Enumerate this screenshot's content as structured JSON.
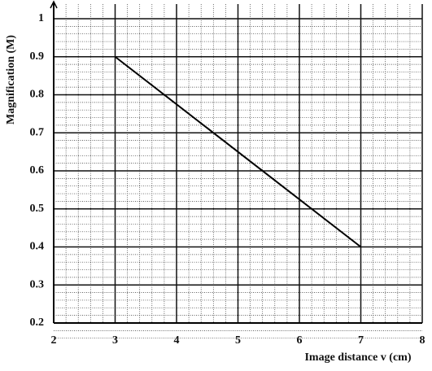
{
  "chart_data": {
    "type": "line",
    "xlabel": "Image distance v (cm)",
    "ylabel": "Magnification (M)",
    "x": [
      3,
      7
    ],
    "series": [
      {
        "name": "M",
        "color": "#000000",
        "values": [
          0.9,
          0.4
        ]
      }
    ],
    "xlim": [
      2,
      8
    ],
    "xticks": [
      2,
      3,
      4,
      5,
      6,
      7,
      8
    ],
    "ylim": [
      0.2,
      1
    ],
    "yticks": [
      0.2,
      0.3,
      0.4,
      0.5,
      0.6,
      0.7,
      0.8,
      0.9,
      1
    ],
    "grid": true
  }
}
